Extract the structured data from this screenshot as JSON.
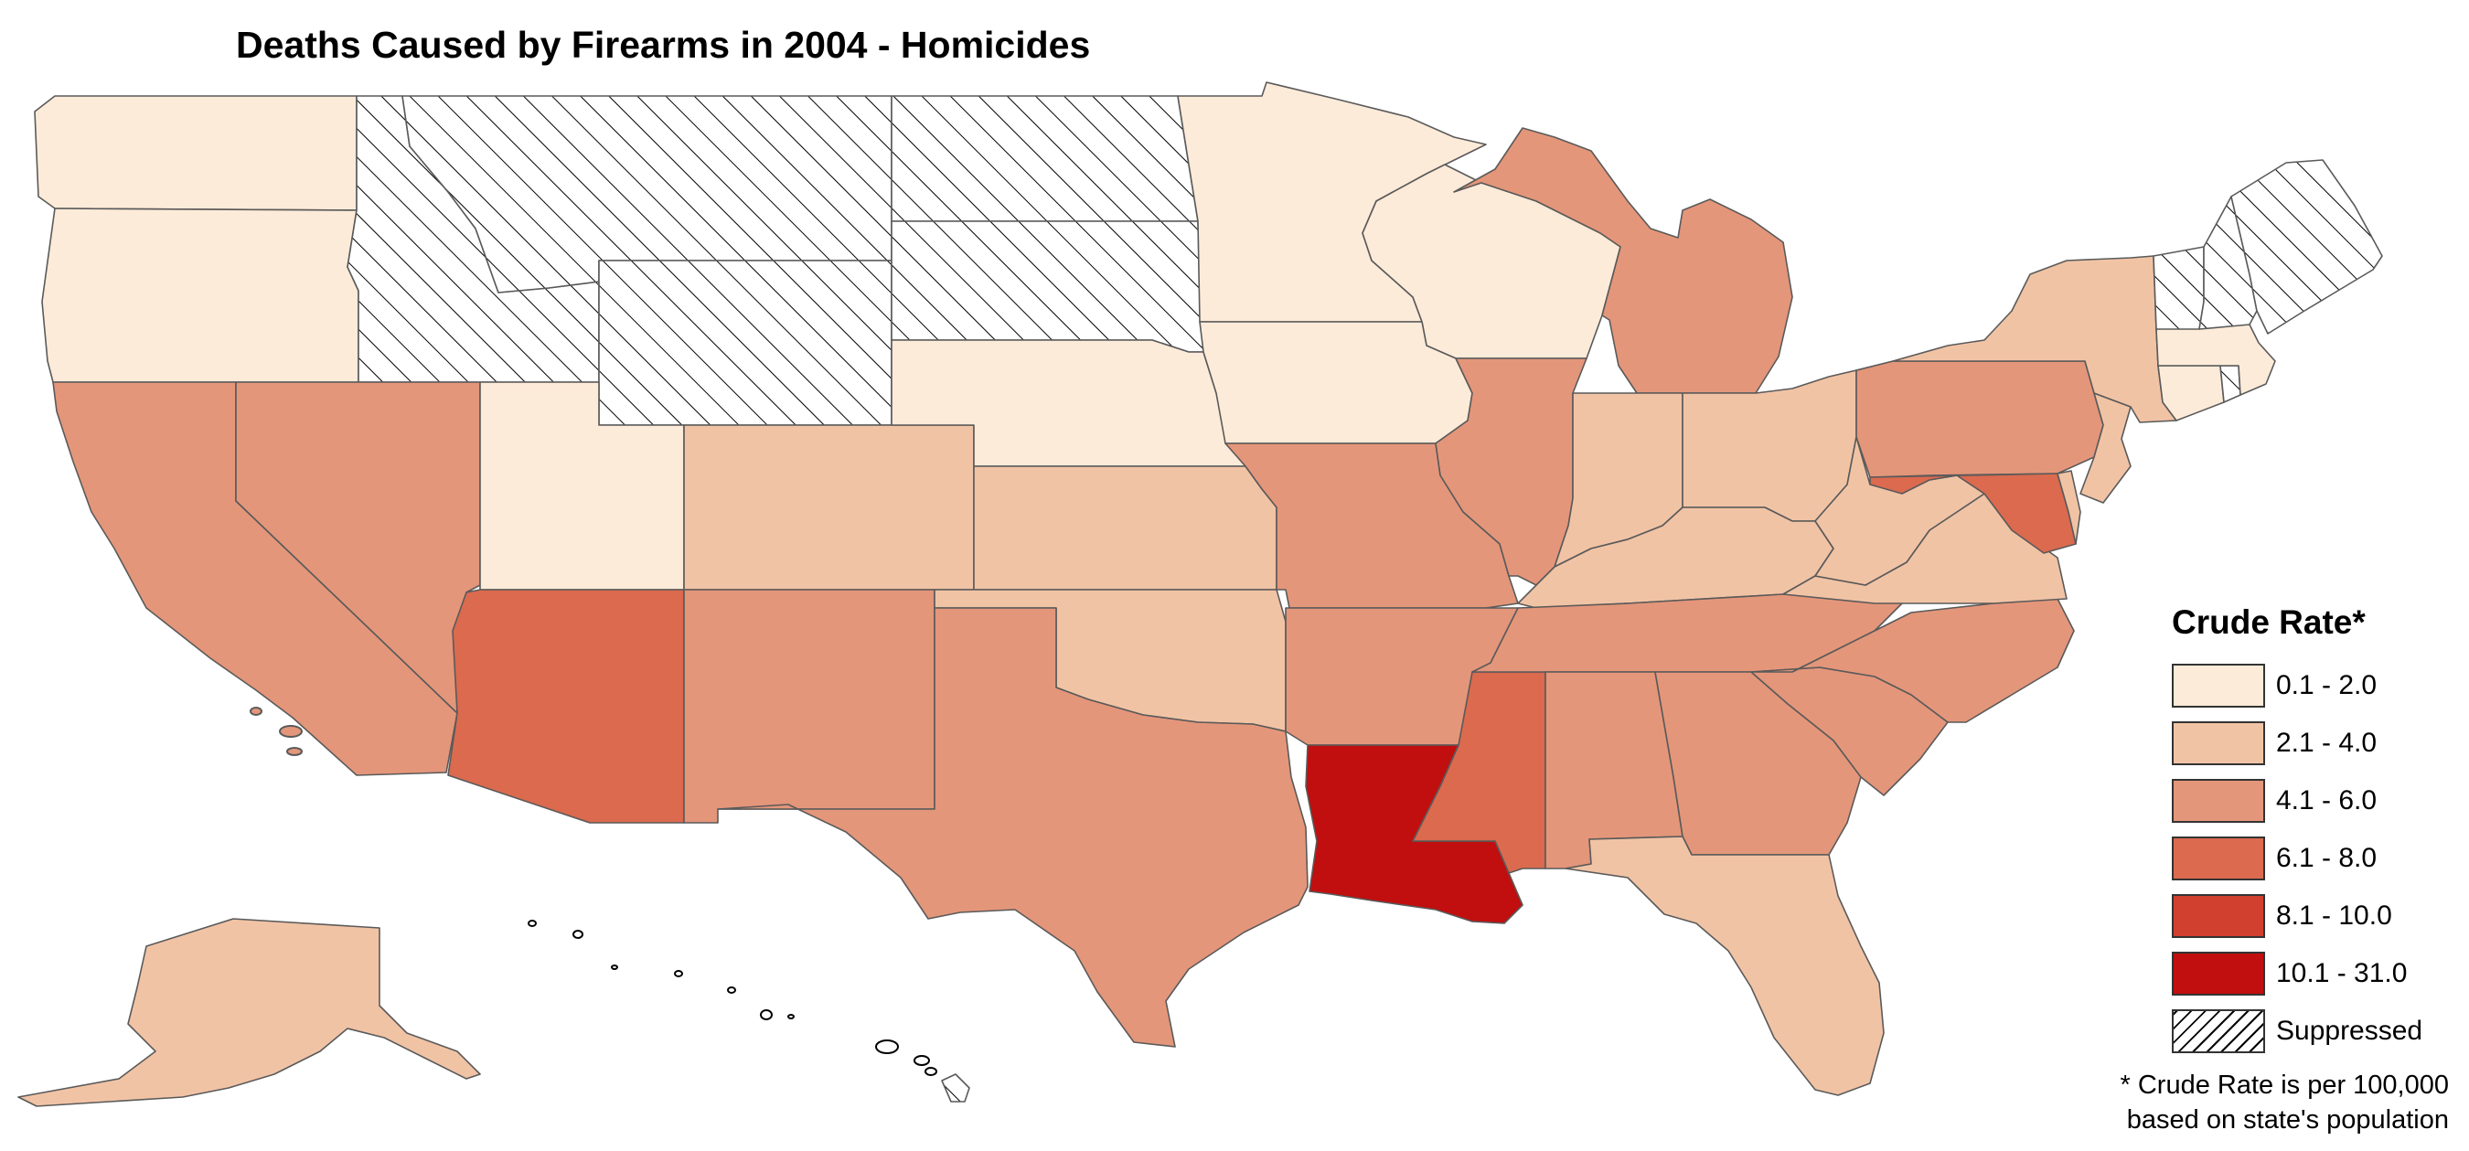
{
  "title": "Deaths Caused by Firearms in 2004 - Homicides",
  "legend": {
    "title": "Crude Rate*",
    "classes": [
      {
        "label": "0.1 - 2.0",
        "color": "#FDEBD9"
      },
      {
        "label": "2.1 - 4.0",
        "color": "#F1C3A5"
      },
      {
        "label": "4.1 - 6.0",
        "color": "#E4967A"
      },
      {
        "label": "6.1 - 8.0",
        "color": "#DB6A4F"
      },
      {
        "label": "8.1 - 10.0",
        "color": "#D13F2E"
      },
      {
        "label": "10.1 - 31.0",
        "color": "#C10E0E"
      },
      {
        "label": "Suppressed",
        "color": "hatched"
      }
    ]
  },
  "footnote": {
    "line1": "* Crude Rate is per 100,000",
    "line2": "based on state's population"
  },
  "states": {
    "Washington": "0.1 - 2.0",
    "Oregon": "0.1 - 2.0",
    "Idaho": "Suppressed",
    "Montana": "Suppressed",
    "Wyoming": "Suppressed",
    "North Dakota": "Suppressed",
    "South Dakota": "Suppressed",
    "Minnesota": "0.1 - 2.0",
    "Wisconsin": "0.1 - 2.0",
    "Iowa": "0.1 - 2.0",
    "Nebraska": "0.1 - 2.0",
    "Utah": "0.1 - 2.0",
    "Colorado": "2.1 - 4.0",
    "Kansas": "2.1 - 4.0",
    "Oklahoma": "2.1 - 4.0",
    "California": "4.1 - 6.0",
    "Nevada": "4.1 - 6.0",
    "Arizona": "6.1 - 8.0",
    "New Mexico": "4.1 - 6.0",
    "Texas": "4.1 - 6.0",
    "Missouri": "4.1 - 6.0",
    "Arkansas": "4.1 - 6.0",
    "Louisiana": "10.1 - 31.0",
    "Mississippi": "6.1 - 8.0",
    "Illinois": "4.1 - 6.0",
    "Michigan": "4.1 - 6.0",
    "Indiana": "2.1 - 4.0",
    "Ohio": "2.1 - 4.0",
    "Kentucky": "2.1 - 4.0",
    "Tennessee": "4.1 - 6.0",
    "Alabama": "4.1 - 6.0",
    "Georgia": "4.1 - 6.0",
    "Florida": "2.1 - 4.0",
    "South Carolina": "4.1 - 6.0",
    "North Carolina": "4.1 - 6.0",
    "Virginia": "2.1 - 4.0",
    "West Virginia": "2.1 - 4.0",
    "Pennsylvania": "4.1 - 6.0",
    "New York": "2.1 - 4.0",
    "New Jersey": "2.1 - 4.0",
    "Maryland": "6.1 - 8.0",
    "Delaware": "2.1 - 4.0",
    "Connecticut": "0.1 - 2.0",
    "Massachusetts": "0.1 - 2.0",
    "Rhode Island": "Suppressed",
    "Vermont": "Suppressed",
    "New Hampshire": "Suppressed",
    "Maine": "Suppressed",
    "Alaska": "2.1 - 4.0",
    "Hawaii": "Suppressed"
  }
}
